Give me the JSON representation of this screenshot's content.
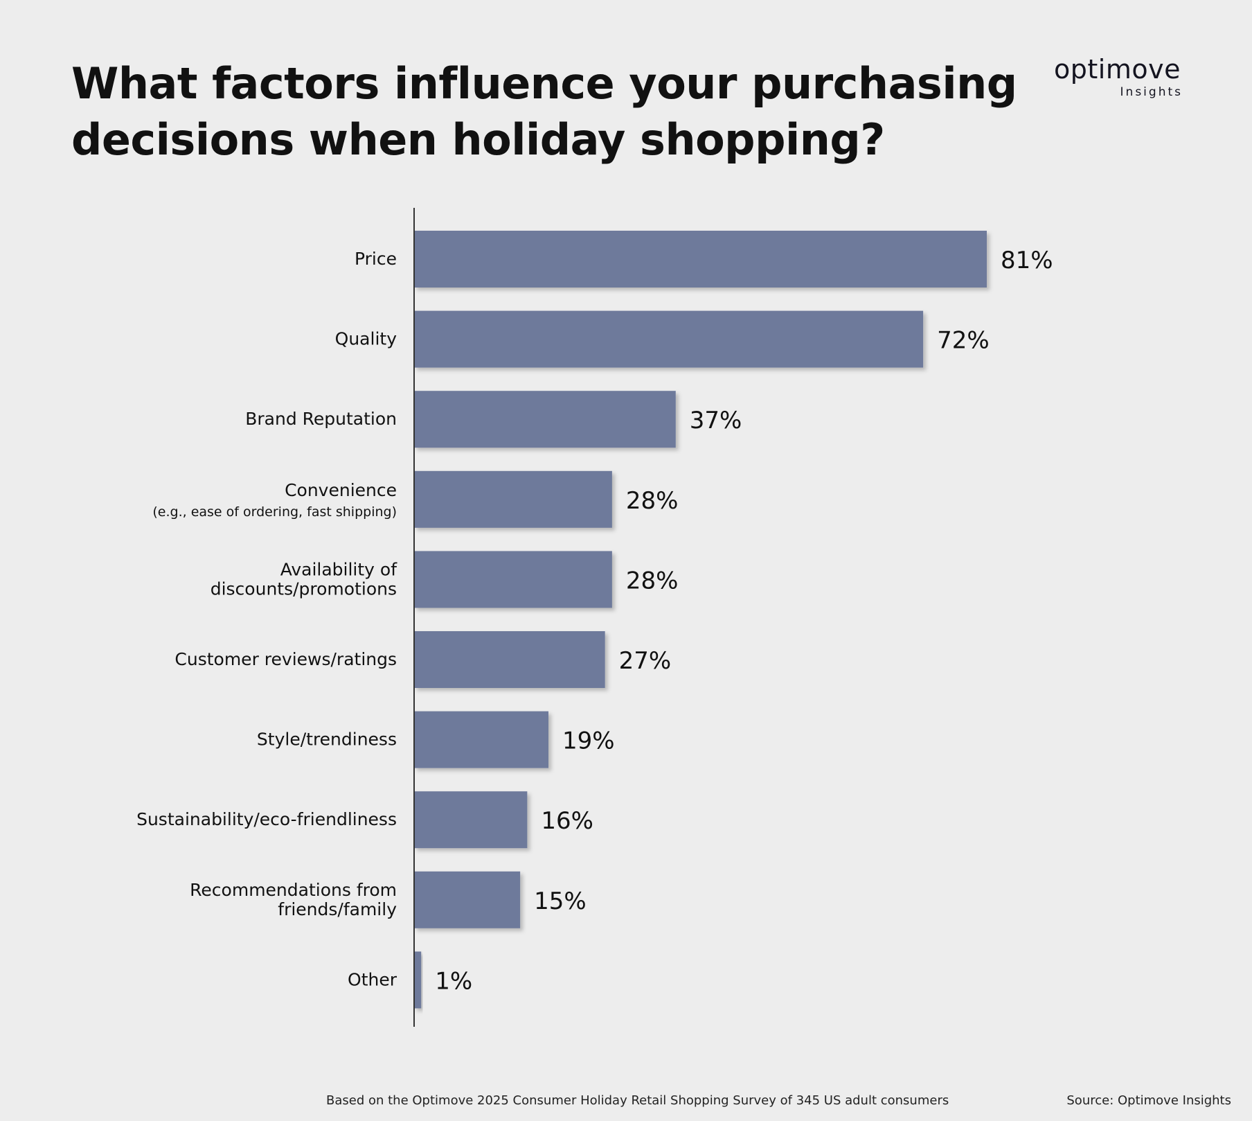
{
  "header": {
    "title_lines": [
      "What factors influence your purchasing",
      "decisions when holiday shopping?"
    ],
    "brand_name": "optimove",
    "brand_sub": "Insights"
  },
  "footer": {
    "note": "Based on the Optimove 2025 Consumer Holiday Retail Shopping Survey of 345 US adult consumers",
    "source": "Source: Optimove Insights"
  },
  "colors": {
    "bar": "#6e7a9b",
    "axis": "#333333",
    "text": "#111111"
  },
  "chart_data": {
    "type": "bar",
    "orientation": "horizontal",
    "title": "What factors influence your purchasing decisions when holiday shopping?",
    "categories": [
      [
        "Price"
      ],
      [
        "Quality"
      ],
      [
        "Brand Reputation"
      ],
      [
        "Convenience",
        "(e.g., ease of ordering, fast shipping)"
      ],
      [
        "Availability of",
        "discounts/promotions"
      ],
      [
        "Customer reviews/ratings"
      ],
      [
        "Style/trendiness"
      ],
      [
        "Sustainability/eco-friendliness"
      ],
      [
        "Recommendations from",
        "friends/family"
      ],
      [
        "Other"
      ]
    ],
    "values": [
      81,
      72,
      37,
      28,
      28,
      27,
      19,
      16,
      15,
      1
    ],
    "value_labels": [
      "81%",
      "72%",
      "37%",
      "28%",
      "28%",
      "27%",
      "19%",
      "16%",
      "15%",
      "1%"
    ],
    "value_unit": "%",
    "xlim": [
      0,
      100
    ],
    "grid": false,
    "legend": "none"
  }
}
